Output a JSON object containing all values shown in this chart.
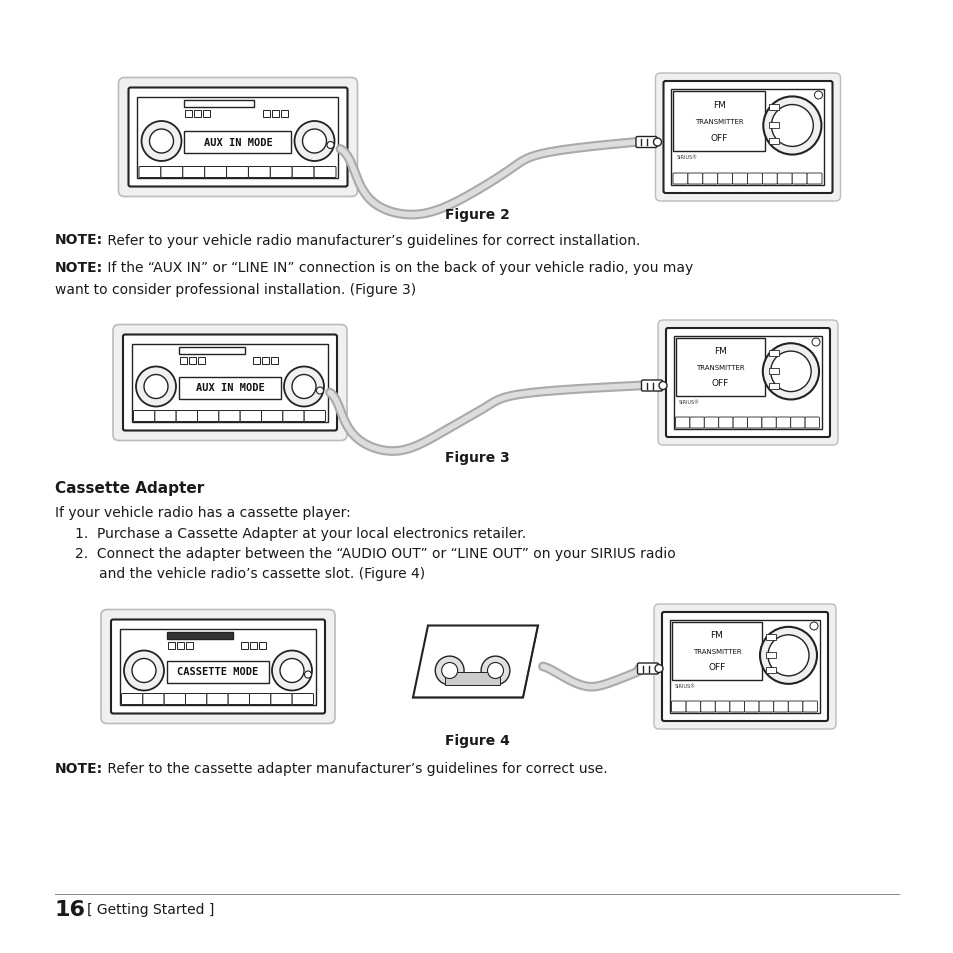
{
  "bg_color": "#ffffff",
  "figure2_caption": "Figure 2",
  "figure3_caption": "Figure 3",
  "figure4_caption": "Figure 4",
  "note1_bold": "NOTE:",
  "note1_rest": " Refer to your vehicle radio manufacturer’s guidelines for correct installation.",
  "note2_bold": "NOTE:",
  "note2_rest": " If the “AUX IN” or “LINE IN” connection is on the back of your vehicle radio, you may",
  "note2_line2": "want to consider professional installation. (Figure 3)",
  "section_title": "Cassette Adapter",
  "section_intro": "If your vehicle radio has a cassette player:",
  "list_item1": "Purchase a Cassette Adapter at your local electronics retailer.",
  "list_item2_line1": "Connect the adapter between the “AUDIO OUT” or “LINE OUT” on your SIRIUS radio",
  "list_item2_line2": "and the vehicle radio’s cassette slot. (Figure 4)",
  "note3_bold": "NOTE:",
  "note3_rest": " Refer to the cassette adapter manufacturer’s guidelines for correct use.",
  "page_num": "16",
  "page_section": "[ Getting Started ]",
  "text_color": "#1a1a1a",
  "line_color": "#222222",
  "gray_fill": "#e8e8e8",
  "light_gray": "#f0f0f0",
  "cable_outer": "#aaaaaa",
  "cable_inner": "#dddddd"
}
